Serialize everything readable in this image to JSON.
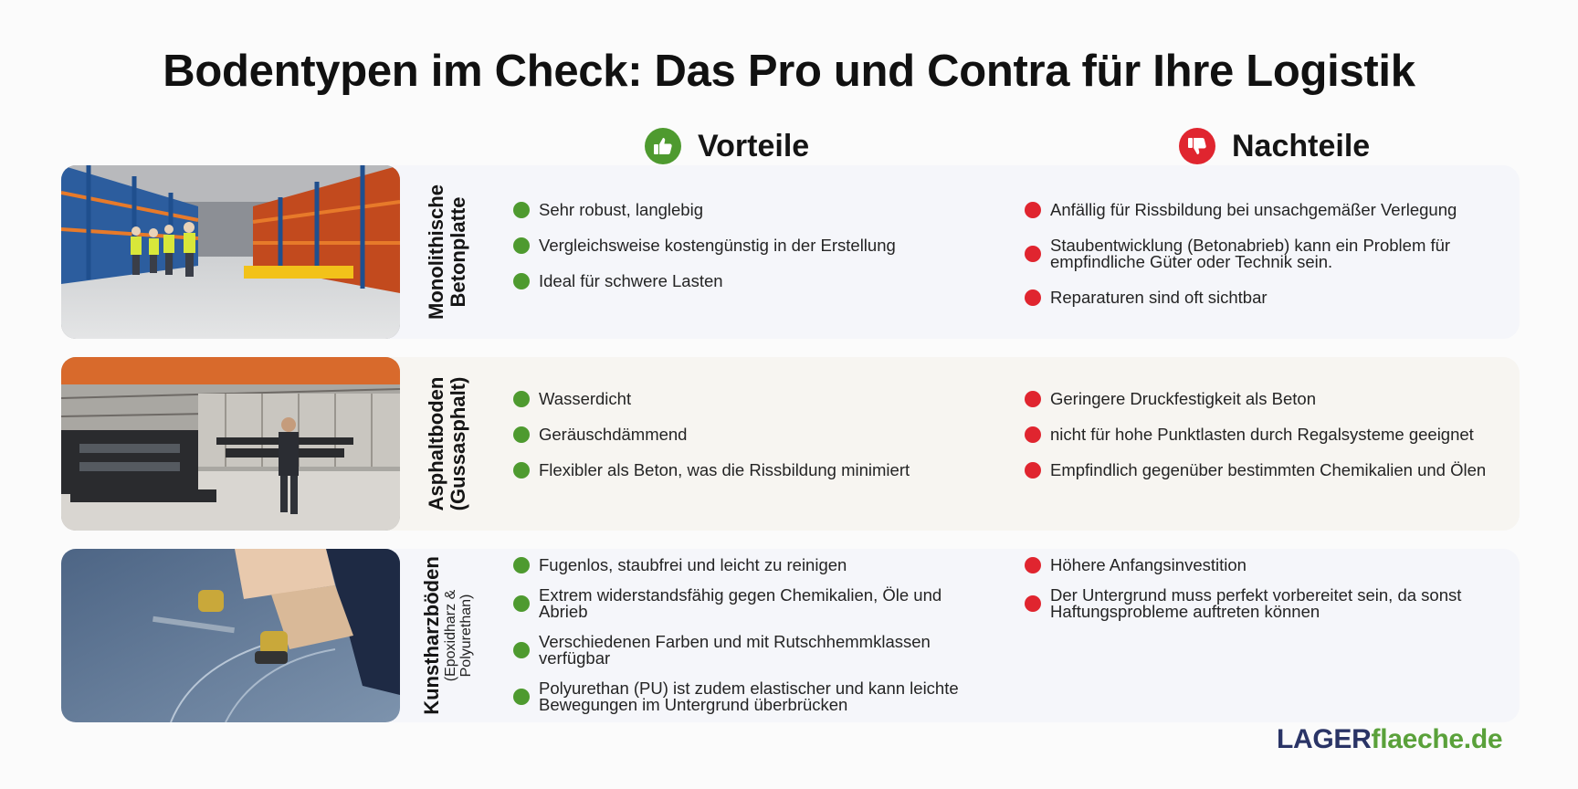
{
  "title": "Bodentypen im Check: Das Pro und Contra für Ihre Logistik",
  "columns": {
    "pros": {
      "label": "Vorteile",
      "icon": "thumbs-up-icon",
      "color": "#4e9a2f"
    },
    "cons": {
      "label": "Nachteile",
      "icon": "thumbs-down-icon",
      "color": "#e0252f"
    }
  },
  "rows": [
    {
      "label_line1": "Monolithische",
      "label_line2": "Betonplatte",
      "label_sub": "",
      "image": "warehouse-workers-photo",
      "pros": [
        "Sehr robust, langlebig",
        "Vergleichsweise kostengünstig in der Erstellung",
        "Ideal für schwere Lasten"
      ],
      "cons": [
        "Anfällig für Rissbildung bei unsachgemäßer Verlegung",
        "Staubentwicklung (Betonabrieb) kann ein Problem für empfindliche Güter oder Technik sein.",
        "Reparaturen sind oft sichtbar"
      ]
    },
    {
      "label_line1": "Asphaltboden",
      "label_line2": "(Gussasphalt)",
      "label_sub": "",
      "image": "industrial-hall-photo",
      "pros": [
        "Wasserdicht",
        "Geräuschdämmend",
        "Flexibler als Beton, was die Rissbildung minimiert"
      ],
      "cons": [
        "Geringere Druckfestigkeit als Beton",
        "nicht für hohe Punktlasten durch Regalsysteme geeignet",
        "Empfindlich gegenüber bestimmten Chemikalien und Ölen"
      ]
    },
    {
      "label_line1": "Kunstharzböden",
      "label_line2": "",
      "label_sub": "(Epoxidharz & Polyurethan)",
      "image": "floor-coating-photo",
      "pros": [
        "Fugenlos, staubfrei und leicht zu reinigen",
        "Extrem widerstandsfähig gegen Chemikalien, Öle und Abrieb",
        "Verschiedenen Farben und mit Rutschhemmklassen verfügbar",
        "Polyurethan (PU) ist zudem elastischer und kann leichte Bewegungen im Untergrund überbrücken"
      ],
      "cons": [
        "Höhere Anfangsinvestition",
        "Der Untergrund muss perfekt vorbereitet sein, da sonst Haftungsprobleme auftreten können"
      ]
    }
  ],
  "logo": {
    "part1": "LAGER",
    "part2": "flaeche.de"
  }
}
